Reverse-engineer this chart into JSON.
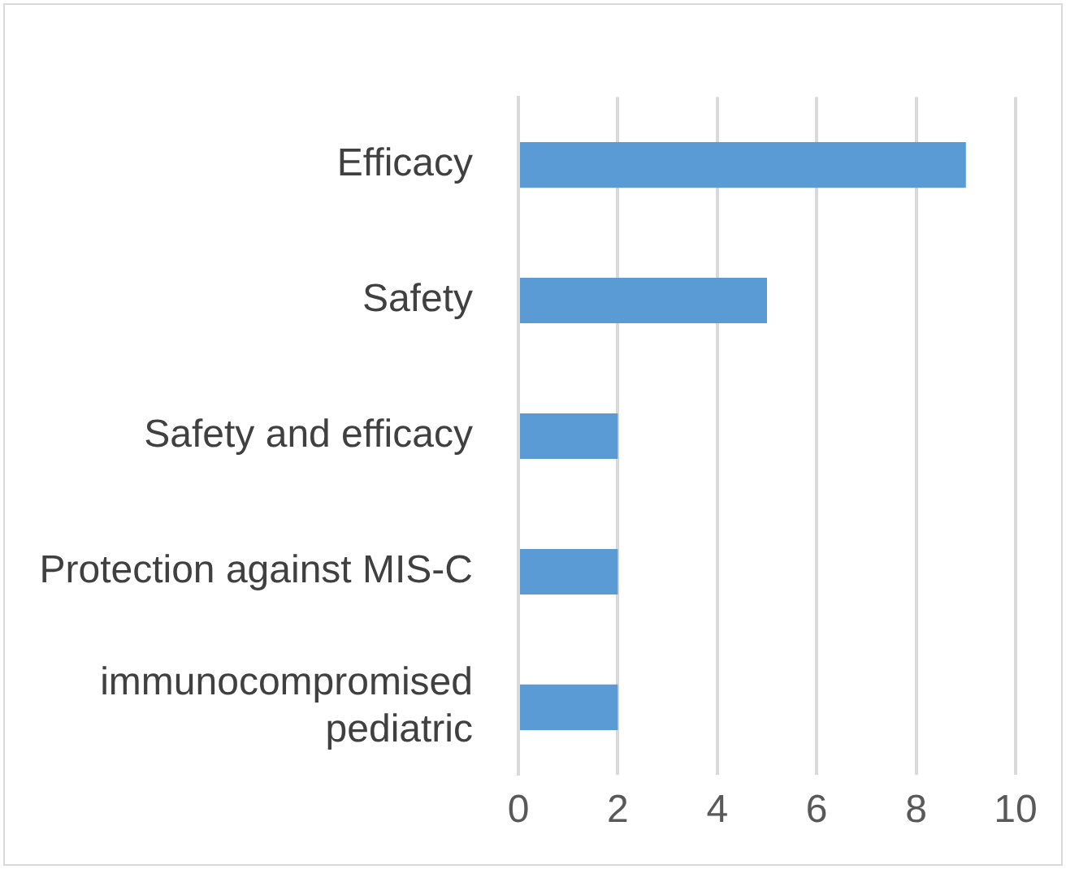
{
  "chart_data": {
    "type": "bar",
    "orientation": "horizontal",
    "categories": [
      "Efficacy",
      "Safety",
      "Safety and efficacy",
      "Protection against MIS-C",
      "immunocompromised pediatric"
    ],
    "values": [
      9,
      5,
      2,
      2,
      2
    ],
    "color": "#5b9bd5",
    "xlim": [
      0,
      10
    ],
    "xticks": [
      0,
      2,
      4,
      6,
      8,
      10
    ],
    "grid": "x",
    "legend": false
  }
}
